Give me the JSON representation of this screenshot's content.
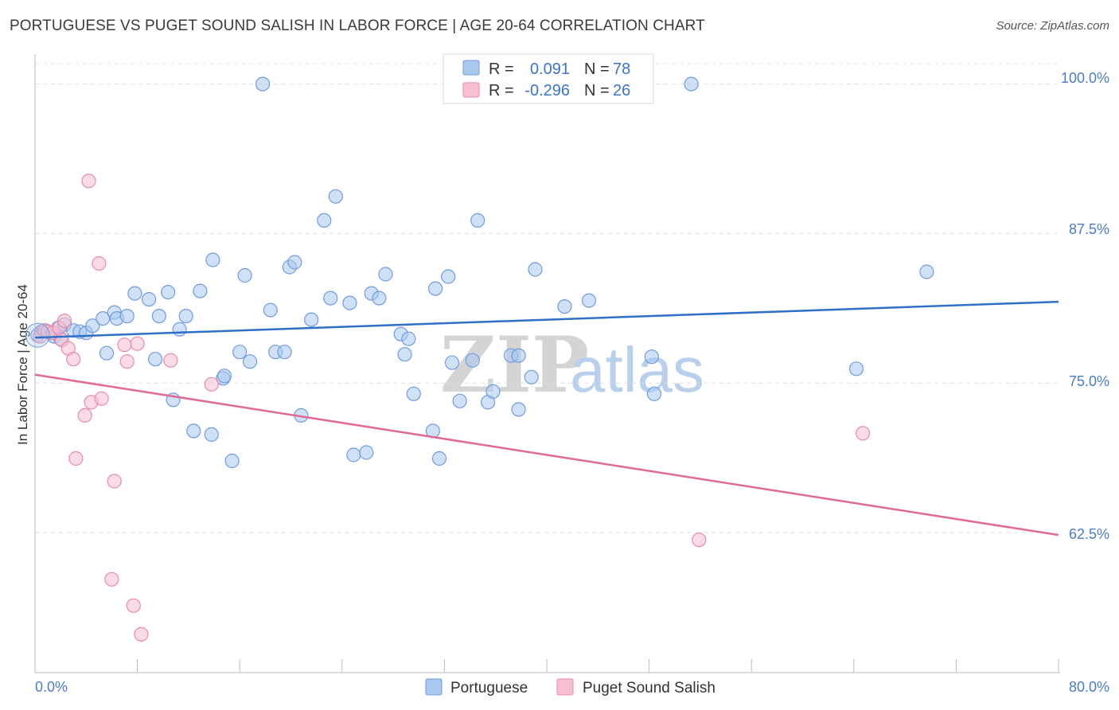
{
  "title": "PORTUGUESE VS PUGET SOUND SALISH IN LABOR FORCE | AGE 20-64 CORRELATION CHART",
  "source": "Source: ZipAtlas.com",
  "watermark": {
    "zip": "ZIP",
    "atlas": "atlas"
  },
  "legend": {
    "rows": [
      {
        "r_label": "R =",
        "r_value": "0.091",
        "n_label": "N =",
        "n_value": "78",
        "color": "#a9c8f0",
        "stroke": "#6f9be0"
      },
      {
        "r_label": "R =",
        "r_value": "-0.296",
        "n_label": "N =",
        "n_value": "26",
        "color": "#f7c0d2",
        "stroke": "#e88aaa"
      }
    ]
  },
  "chart_data": {
    "type": "scatter",
    "title": "PORTUGUESE VS PUGET SOUND SALISH IN LABOR FORCE | AGE 20-64 CORRELATION CHART",
    "xlabel": "",
    "ylabel": "In Labor Force | Age 20-64",
    "xlim": [
      0,
      80
    ],
    "ylim": [
      50.8,
      102.5
    ],
    "x_tick_labels": [
      "0.0%",
      "80.0%"
    ],
    "y_ticks": [
      62.5,
      75.0,
      87.5,
      100.0
    ],
    "y_tick_labels": [
      "62.5%",
      "75.0%",
      "87.5%",
      "100.0%"
    ],
    "grid": true,
    "legend_position": "bottom",
    "series": [
      {
        "name": "Portuguese",
        "color": "#a9c8f0",
        "stroke": "#6f9be0",
        "line_color": "#2e6fca",
        "trend": {
          "x": [
            0,
            80
          ],
          "y": [
            78.8,
            81.8
          ]
        },
        "points": [
          [
            0.2,
            79.0
          ],
          [
            0.5,
            79.3
          ],
          [
            0.8,
            79.4
          ],
          [
            1.2,
            79.2
          ],
          [
            1.5,
            78.9
          ],
          [
            1.8,
            79.6
          ],
          [
            2.0,
            78.7
          ],
          [
            2.3,
            79.9
          ],
          [
            3.0,
            79.4
          ],
          [
            3.5,
            79.3
          ],
          [
            4.0,
            79.2
          ],
          [
            4.5,
            79.8
          ],
          [
            5.3,
            80.4
          ],
          [
            5.6,
            77.5
          ],
          [
            6.2,
            80.9
          ],
          [
            6.4,
            80.4
          ],
          [
            7.8,
            82.5
          ],
          [
            7.2,
            80.6
          ],
          [
            8.9,
            82.0
          ],
          [
            9.4,
            77.0
          ],
          [
            9.7,
            80.6
          ],
          [
            10.4,
            82.6
          ],
          [
            10.8,
            73.6
          ],
          [
            11.3,
            79.5
          ],
          [
            11.8,
            80.6
          ],
          [
            12.4,
            71.0
          ],
          [
            12.9,
            82.7
          ],
          [
            13.8,
            70.7
          ],
          [
            13.9,
            85.3
          ],
          [
            14.7,
            75.4
          ],
          [
            14.8,
            75.6
          ],
          [
            15.4,
            68.5
          ],
          [
            16.0,
            77.6
          ],
          [
            16.4,
            84.0
          ],
          [
            16.8,
            76.8
          ],
          [
            17.8,
            100.0
          ],
          [
            18.4,
            81.1
          ],
          [
            18.8,
            77.6
          ],
          [
            19.5,
            77.6
          ],
          [
            19.9,
            84.7
          ],
          [
            20.3,
            85.1
          ],
          [
            20.8,
            72.3
          ],
          [
            21.6,
            80.3
          ],
          [
            22.6,
            88.6
          ],
          [
            23.1,
            82.1
          ],
          [
            23.5,
            90.6
          ],
          [
            24.6,
            81.7
          ],
          [
            24.9,
            69.0
          ],
          [
            25.9,
            69.2
          ],
          [
            26.3,
            82.5
          ],
          [
            26.9,
            82.1
          ],
          [
            27.4,
            84.1
          ],
          [
            28.6,
            79.1
          ],
          [
            28.9,
            77.4
          ],
          [
            29.2,
            78.7
          ],
          [
            29.6,
            74.1
          ],
          [
            31.1,
            71.0
          ],
          [
            31.3,
            82.9
          ],
          [
            31.6,
            68.7
          ],
          [
            32.3,
            83.9
          ],
          [
            32.6,
            76.7
          ],
          [
            33.2,
            73.5
          ],
          [
            34.2,
            76.9
          ],
          [
            34.6,
            88.6
          ],
          [
            35.4,
            73.4
          ],
          [
            35.8,
            74.3
          ],
          [
            37.2,
            77.3
          ],
          [
            37.8,
            77.3
          ],
          [
            37.8,
            72.8
          ],
          [
            38.8,
            75.5
          ],
          [
            39.1,
            84.5
          ],
          [
            41.4,
            81.4
          ],
          [
            43.3,
            81.9
          ],
          [
            48.2,
            77.2
          ],
          [
            48.4,
            74.1
          ],
          [
            51.3,
            100.0
          ],
          [
            64.2,
            76.2
          ],
          [
            69.7,
            84.3
          ]
        ]
      },
      {
        "name": "Puget Sound Salish",
        "color": "#f7c0d2",
        "stroke": "#e88aaa",
        "line_color": "#e06a95",
        "trend": {
          "x": [
            0,
            80
          ],
          "y": [
            75.7,
            62.3
          ]
        },
        "points": [
          [
            0.4,
            78.9
          ],
          [
            0.7,
            79.4
          ],
          [
            1.0,
            79.3
          ],
          [
            1.4,
            79.2
          ],
          [
            1.9,
            79.6
          ],
          [
            2.1,
            78.6
          ],
          [
            2.3,
            80.2
          ],
          [
            2.6,
            77.9
          ],
          [
            3.0,
            77.0
          ],
          [
            3.2,
            68.7
          ],
          [
            3.9,
            72.3
          ],
          [
            4.2,
            91.9
          ],
          [
            4.4,
            73.4
          ],
          [
            5.0,
            85.0
          ],
          [
            5.2,
            73.7
          ],
          [
            6.0,
            58.6
          ],
          [
            6.2,
            66.8
          ],
          [
            7.0,
            78.2
          ],
          [
            7.2,
            76.8
          ],
          [
            7.7,
            56.4
          ],
          [
            8.0,
            78.3
          ],
          [
            8.3,
            54.0
          ],
          [
            10.6,
            76.9
          ],
          [
            13.8,
            74.9
          ],
          [
            51.9,
            61.9
          ],
          [
            64.7,
            70.8
          ]
        ]
      }
    ]
  }
}
